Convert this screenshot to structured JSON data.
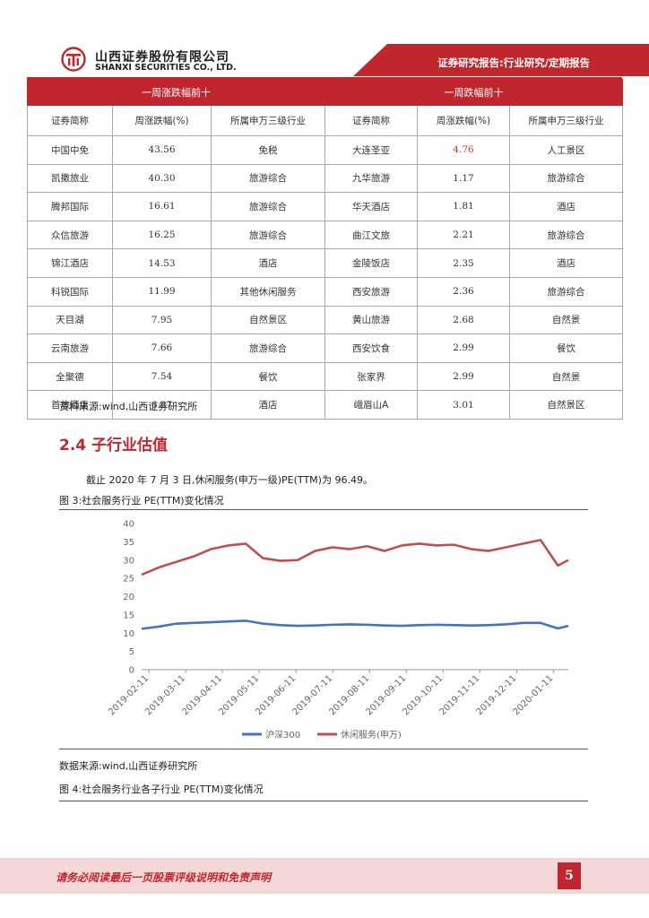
{
  "header": {
    "company_cn": "山西证券股份有限公司",
    "company_en": "SHANXI SECURITIES CO., LTD.",
    "report_type": "证券研究报告:行业研究/定期报告",
    "brand_color": "#c0262d"
  },
  "table": {
    "left_title": "一周涨跌幅前十",
    "right_title": "一周跌幅前十",
    "columns": [
      "证券简称",
      "周涨跌幅(%)",
      "所属申万三级行业",
      "证券简称",
      "周涨跌幅(%)",
      "所属申万三级行业"
    ],
    "rows": [
      [
        "中国中免",
        "43.56",
        "免税",
        "大连圣亚",
        "4.76",
        "人工景区"
      ],
      [
        "凯撒旅业",
        "40.30",
        "旅游综合",
        "九华旅游",
        "1.17",
        "旅游综合"
      ],
      [
        "腾邦国际",
        "16.61",
        "旅游综合",
        "华天酒店",
        "1.81",
        "酒店"
      ],
      [
        "众信旅游",
        "16.25",
        "旅游综合",
        "曲江文旅",
        "2.21",
        "旅游综合"
      ],
      [
        "锦江酒店",
        "14.53",
        "酒店",
        "金陵饭店",
        "2.35",
        "酒店"
      ],
      [
        "科锐国际",
        "11.99",
        "其他休闲服务",
        "西安旅游",
        "2.36",
        "旅游综合"
      ],
      [
        "天目湖",
        "7.95",
        "自然景区",
        "黄山旅游",
        "2.68",
        "自然景"
      ],
      [
        "云南旅游",
        "7.66",
        "旅游综合",
        "西安饮食",
        "2.99",
        "餐饮"
      ],
      [
        "全聚德",
        "7.54",
        "餐饮",
        "张家界",
        "2.99",
        "自然景"
      ],
      [
        "首旅酒店",
        "6.27",
        "酒店",
        "峨眉山A",
        "3.01",
        "自然景区"
      ]
    ]
  },
  "source_1": "资料来源:wind,山西证券研究所",
  "section_title": "2.4 子行业估值",
  "paragraph": "截止 2020 年 7 月 3 日,休闲服务(申万一级)PE(TTM)为 96.49。",
  "figure3_caption": "图 3:社会服务行业 PE(TTM)变化情况",
  "chart_data": {
    "type": "line",
    "title": "",
    "xlabel": "",
    "ylabel": "",
    "ylim": [
      0,
      40
    ],
    "yticks": [
      0,
      5,
      10,
      15,
      20,
      25,
      30,
      35,
      40
    ],
    "grid": false,
    "legend_position": "bottom-center",
    "x_tick_labels": [
      "2019-02-11",
      "2019-03-11",
      "2019-04-11",
      "2019-05-11",
      "2019-06-11",
      "2019-07-11",
      "2019-08-11",
      "2019-09-11",
      "2019-10-11",
      "2019-11-11",
      "2019-12-11",
      "2020-01-11"
    ],
    "x": [
      0,
      0.5,
      1,
      1.5,
      2,
      2.5,
      3,
      3.5,
      4,
      4.5,
      5,
      5.5,
      6,
      6.5,
      7,
      7.5,
      8,
      8.5,
      9,
      9.5,
      10,
      10.5,
      11,
      11.5,
      12,
      12.3
    ],
    "series": [
      {
        "name": "沪深300",
        "color": "#4472c4",
        "values": [
          11.2,
          11.8,
          12.6,
          12.8,
          13.0,
          13.2,
          13.4,
          12.6,
          12.2,
          12.0,
          12.1,
          12.3,
          12.4,
          12.3,
          12.1,
          12.0,
          12.2,
          12.3,
          12.2,
          12.1,
          12.2,
          12.4,
          12.8,
          12.8,
          11.3,
          12.0
        ]
      },
      {
        "name": "休闲服务(申万)",
        "color": "#c0504d",
        "values": [
          26.0,
          28.0,
          29.5,
          31.0,
          33.0,
          34.0,
          34.5,
          30.5,
          29.8,
          30.0,
          32.5,
          33.5,
          33.0,
          33.8,
          32.5,
          34.0,
          34.5,
          34.0,
          34.2,
          33.0,
          32.5,
          33.5,
          34.5,
          35.5,
          28.5,
          30.0
        ]
      }
    ]
  },
  "source_2": "数据来源:wind,山西证券研究所",
  "figure4_caption": "图 4:社会服务行业各子行业 PE(TTM)变化情况",
  "footer": {
    "disclaimer": "请务必阅读最后一页股票评级说明和免责声明",
    "page_number": "5"
  }
}
